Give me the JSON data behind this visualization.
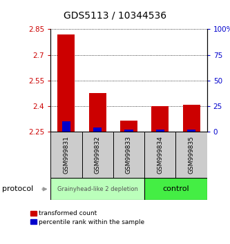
{
  "title": "GDS5113 / 10344536",
  "samples": [
    "GSM999831",
    "GSM999832",
    "GSM999833",
    "GSM999834",
    "GSM999835"
  ],
  "red_values": [
    2.82,
    2.475,
    2.315,
    2.4,
    2.41
  ],
  "blue_values": [
    2.31,
    2.275,
    2.263,
    2.262,
    2.262
  ],
  "red_base": 2.25,
  "blue_base": 2.25,
  "ylim": [
    2.25,
    2.85
  ],
  "yticks_left": [
    2.25,
    2.4,
    2.55,
    2.7,
    2.85
  ],
  "yticks_right": [
    0,
    25,
    50,
    75,
    100
  ],
  "left_color": "#cc0000",
  "blue_color": "#0000cc",
  "group1_label": "Grainyhead-like 2 depletion",
  "group2_label": "control",
  "group1_color": "#bbffbb",
  "group2_color": "#44ee44",
  "legend_red": "transformed count",
  "legend_blue": "percentile rank within the sample",
  "protocol_label": "protocol",
  "bar_width": 0.55,
  "title_fontsize": 10,
  "cell_color": "#cccccc"
}
